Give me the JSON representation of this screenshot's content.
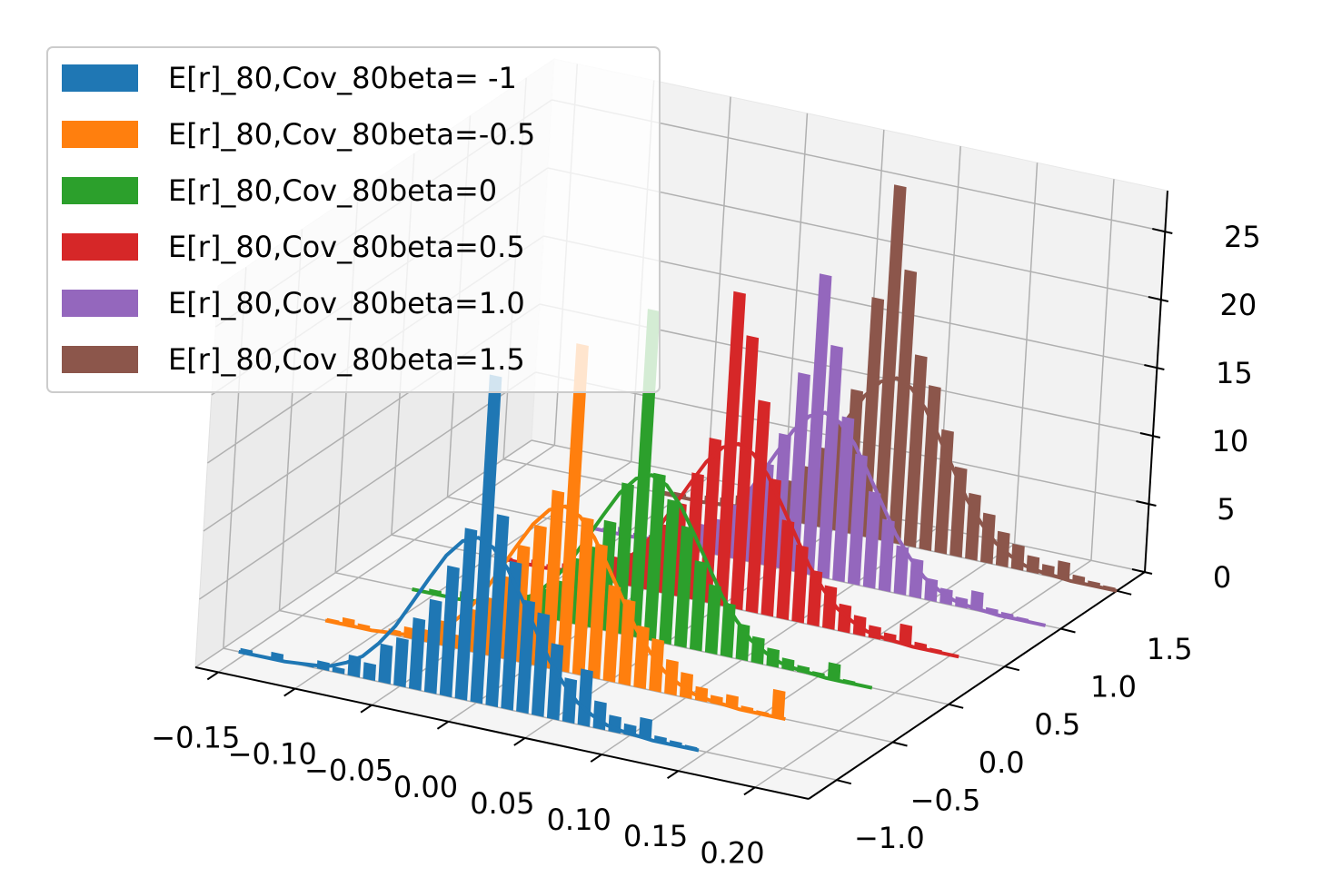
{
  "chart_data": {
    "type": "histogram3d",
    "xlim": [
      -0.165,
      0.235
    ],
    "ylim": [
      -1.25,
      1.75
    ],
    "zlim": [
      0,
      28
    ],
    "xticks": [
      {
        "value": -0.15,
        "label": "−0.15"
      },
      {
        "value": -0.1,
        "label": "−0.10"
      },
      {
        "value": -0.05,
        "label": "−0.05"
      },
      {
        "value": 0,
        "label": "0.00"
      },
      0.05,
      {
        "value": 0.1,
        "label": "0.10"
      },
      0.15,
      {
        "value": 0.2,
        "label": "0.20"
      }
    ],
    "yticks": [
      {
        "value": -1,
        "label": "−1.0"
      },
      {
        "value": -0.5,
        "label": "−0.5"
      },
      {
        "value": 0,
        "label": "0.0"
      },
      0.5,
      {
        "value": 1,
        "label": "1.0"
      },
      1.5
    ],
    "zticks": [
      0,
      5,
      10,
      15,
      20,
      25
    ],
    "grid": true,
    "legend": "upper left",
    "series": [
      {
        "name": "E[r]_80,Cov_80beta= -1",
        "color": "#1f77b4",
        "depth": -1,
        "bins": [
          -0.155,
          -0.145,
          -0.135,
          -0.125,
          -0.115,
          -0.105,
          -0.095,
          -0.085,
          -0.075,
          -0.065,
          -0.055,
          -0.045,
          -0.035,
          -0.025,
          -0.015,
          -0.005,
          0.005,
          0.015,
          0.025,
          0.035,
          0.045,
          0.055,
          0.065,
          0.075,
          0.085,
          0.095,
          0.105,
          0.115,
          0.125,
          0.135,
          0.145
        ],
        "values": [
          0.3,
          0,
          0.5,
          0,
          0.2,
          0.6,
          0.4,
          1.5,
          1.2,
          2.8,
          3.5,
          5.2,
          6.8,
          9.5,
          12.5,
          24,
          14,
          10.8,
          8.2,
          7.5,
          5.5,
          3.2,
          4.1,
          2.0,
          1.2,
          0.8,
          1.5,
          0.4,
          0.3,
          0.2
        ],
        "fit_values": [
          0,
          0,
          0,
          0,
          0.1,
          0.2,
          0.4,
          0.9,
          1.6,
          2.8,
          4.3,
          6.3,
          8.3,
          10.2,
          11.5,
          12,
          11.5,
          10.2,
          8.3,
          6.3,
          4.3,
          2.8,
          1.6,
          0.9,
          0.4,
          0.2,
          0.1,
          0,
          0,
          0,
          0
        ]
      },
      {
        "name": "E[r]_80,Cov_80beta=-0.5",
        "color": "#ff7f0e",
        "depth": -0.5,
        "bins": [
          -0.135,
          -0.125,
          -0.115,
          -0.105,
          -0.095,
          -0.085,
          -0.075,
          -0.065,
          -0.055,
          -0.045,
          -0.035,
          -0.025,
          -0.015,
          -0.005,
          0.005,
          0.015,
          0.025,
          0.035,
          0.045,
          0.055,
          0.065,
          0.075,
          0.085,
          0.095,
          0.105,
          0.115,
          0.125,
          0.135,
          0.145,
          0.155,
          0.165
        ],
        "values": [
          0.2,
          0.5,
          0.3,
          0,
          0.4,
          0.8,
          0.9,
          1.8,
          1.0,
          3.1,
          4.2,
          6.0,
          8.5,
          10.2,
          13.0,
          24,
          11.5,
          9.8,
          7.0,
          6.2,
          4.5,
          3.8,
          2.5,
          1.8,
          1.0,
          0.6,
          0.9,
          0.3,
          0.2,
          2.0
        ],
        "fit_values": [
          0,
          0,
          0,
          0,
          0.1,
          0.2,
          0.4,
          0.9,
          1.6,
          2.8,
          4.3,
          6.3,
          8.3,
          10.2,
          11.5,
          12,
          11.5,
          10.2,
          8.3,
          6.3,
          4.3,
          2.8,
          1.6,
          0.9,
          0.4,
          0.2,
          0.1,
          0,
          0,
          0,
          0
        ]
      },
      {
        "name": "E[r]_80,Cov_80beta=0",
        "color": "#2ca02c",
        "depth": 0,
        "bins": [
          -0.115,
          -0.105,
          -0.095,
          -0.085,
          -0.075,
          -0.065,
          -0.055,
          -0.045,
          -0.035,
          -0.025,
          -0.015,
          -0.005,
          0.005,
          0.015,
          0.025,
          0.035,
          0.045,
          0.055,
          0.065,
          0.075,
          0.085,
          0.095,
          0.105,
          0.115,
          0.125,
          0.135,
          0.145,
          0.155,
          0.165,
          0.175,
          0.185
        ],
        "values": [
          0.1,
          0.3,
          0,
          0.6,
          0.2,
          0.5,
          1.2,
          1.4,
          2.1,
          2.9,
          4.8,
          5.9,
          8.0,
          11.0,
          24,
          12.2,
          10.5,
          8.8,
          6.5,
          5.0,
          3.9,
          2.6,
          1.9,
          1.3,
          0.8,
          0.5,
          0.3,
          1.2,
          0.2,
          0.1
        ],
        "fit_values": [
          0,
          0,
          0,
          0,
          0.1,
          0.2,
          0.4,
          0.9,
          1.6,
          2.8,
          4.3,
          6.3,
          8.3,
          10.2,
          11.5,
          12,
          11.5,
          10.2,
          8.3,
          6.3,
          4.3,
          2.8,
          1.6,
          0.9,
          0.4,
          0.2,
          0.1,
          0,
          0,
          0,
          0
        ]
      },
      {
        "name": "E[r]_80,Cov_80beta=0.5",
        "color": "#d62728",
        "depth": 0.5,
        "bins": [
          -0.095,
          -0.085,
          -0.075,
          -0.065,
          -0.055,
          -0.045,
          -0.035,
          -0.025,
          -0.015,
          -0.005,
          0.005,
          0.015,
          0.025,
          0.035,
          0.045,
          0.055,
          0.065,
          0.075,
          0.085,
          0.095,
          0.105,
          0.115,
          0.125,
          0.135,
          0.145,
          0.155,
          0.165,
          0.175,
          0.185,
          0.195,
          0.205
        ],
        "values": [
          0.2,
          0,
          0.4,
          0.3,
          0.6,
          0.8,
          1.0,
          1.9,
          2.4,
          3.6,
          5.0,
          6.8,
          9.2,
          12.0,
          23,
          20,
          15.5,
          10.0,
          7.2,
          5.6,
          4.0,
          3.1,
          2.0,
          1.4,
          0.9,
          0.6,
          1.5,
          0.4,
          0.2,
          0.1
        ],
        "fit_values": [
          0,
          0,
          0,
          0,
          0.1,
          0.2,
          0.4,
          0.9,
          1.6,
          2.8,
          4.3,
          6.3,
          8.3,
          10.2,
          11.5,
          12,
          11.5,
          10.2,
          8.3,
          6.3,
          4.3,
          2.8,
          1.6,
          0.9,
          0.4,
          0.2,
          0.1,
          0,
          0,
          0,
          0
        ]
      },
      {
        "name": "E[r]_80,Cov_80beta=1.0",
        "color": "#9467bd",
        "depth": 1,
        "bins": [
          -0.075,
          -0.065,
          -0.055,
          -0.045,
          -0.035,
          -0.025,
          -0.015,
          -0.005,
          0.005,
          0.015,
          0.025,
          0.035,
          0.045,
          0.055,
          0.065,
          0.075,
          0.085,
          0.095,
          0.105,
          0.115,
          0.125,
          0.135,
          0.145,
          0.155,
          0.165,
          0.175,
          0.185,
          0.195,
          0.205,
          0.215,
          0.225
        ],
        "values": [
          0.1,
          0.2,
          0.5,
          0.3,
          0.4,
          0.9,
          1.3,
          2.0,
          2.6,
          3.9,
          5.4,
          7.4,
          9.8,
          14.5,
          22,
          17,
          12.0,
          9.5,
          7.0,
          5.2,
          3.5,
          2.8,
          1.6,
          1.1,
          0.7,
          1.4,
          0.4,
          0.3,
          0.2,
          0.1
        ],
        "fit_values": [
          0,
          0,
          0,
          0,
          0.1,
          0.2,
          0.4,
          0.9,
          1.6,
          2.8,
          4.3,
          6.3,
          8.3,
          10.2,
          11.5,
          12,
          11.5,
          10.2,
          8.3,
          6.3,
          4.3,
          2.8,
          1.6,
          0.9,
          0.4,
          0.2,
          0.1,
          0,
          0,
          0,
          0
        ]
      },
      {
        "name": "E[r]_80,Cov_80beta=1.5",
        "color": "#8c564b",
        "depth": 1.5,
        "bins": [
          -0.065,
          -0.055,
          -0.045,
          -0.035,
          -0.025,
          -0.015,
          -0.005,
          0.005,
          0.015,
          0.025,
          0.035,
          0.045,
          0.055,
          0.065,
          0.075,
          0.085,
          0.095,
          0.105,
          0.115,
          0.125,
          0.135,
          0.145,
          0.155,
          0.165,
          0.175,
          0.185,
          0.195,
          0.205,
          0.215,
          0.225,
          0.235
        ],
        "values": [
          0.2,
          0.3,
          0.1,
          0.5,
          0.6,
          1.0,
          1.5,
          2.2,
          2.9,
          4.2,
          5.8,
          7.9,
          10.5,
          17.5,
          26,
          20,
          14,
          12,
          9,
          6.5,
          4.8,
          3.6,
          2.5,
          1.8,
          1.2,
          0.8,
          1.3,
          0.5,
          0.3,
          0.2
        ],
        "fit_values": [
          0,
          0,
          0,
          0,
          0.1,
          0.2,
          0.4,
          0.9,
          1.6,
          2.8,
          4.3,
          6.3,
          8.3,
          10.2,
          11.5,
          12,
          11.5,
          10.2,
          8.3,
          6.3,
          4.3,
          2.8,
          1.6,
          0.9,
          0.4,
          0.2,
          0.1,
          0,
          0,
          0,
          0
        ]
      }
    ]
  }
}
